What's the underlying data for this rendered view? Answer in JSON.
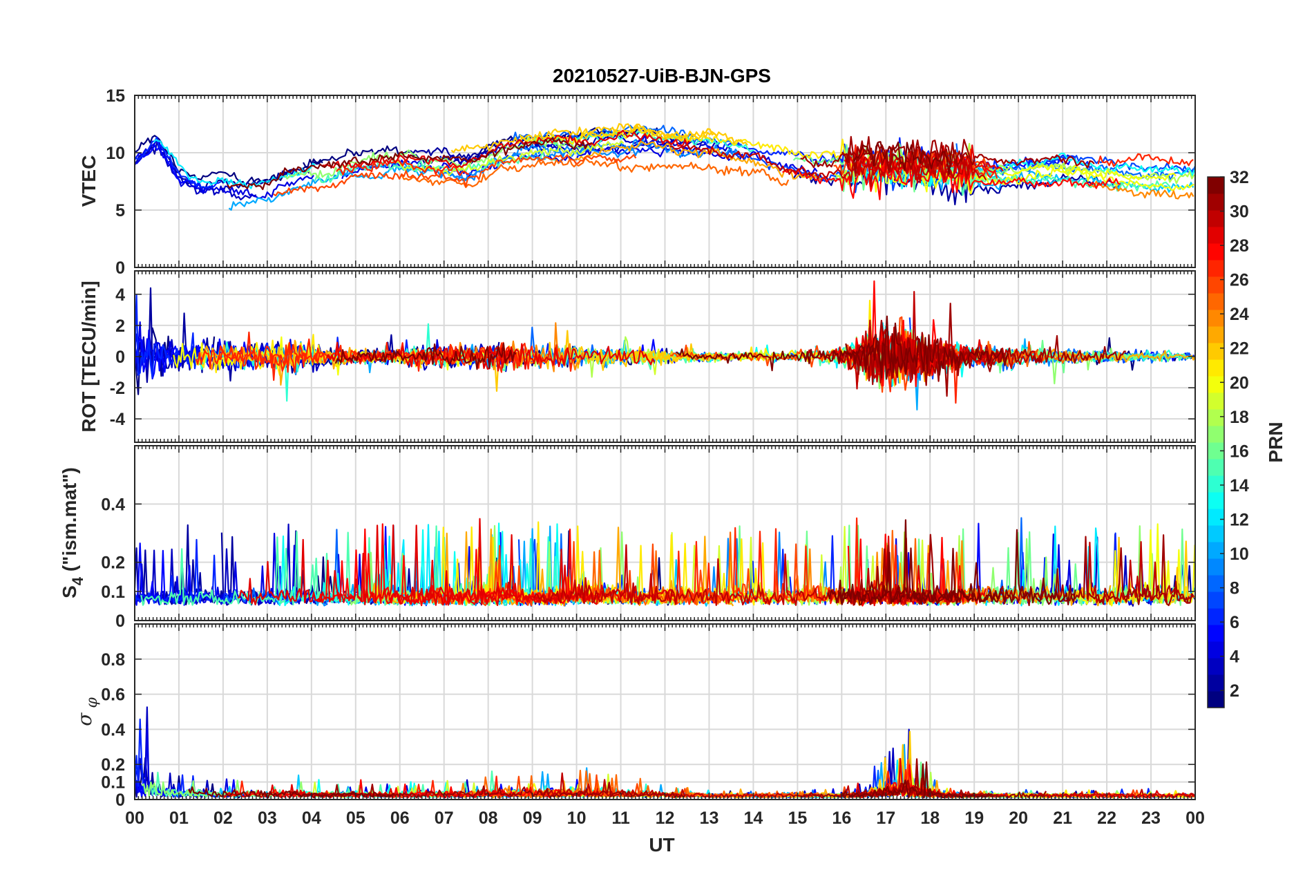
{
  "chart_data": {
    "type": "line",
    "title": "20210527-UiB-BJN-GPS",
    "xlabel": "UT",
    "x_ticks": [
      "00",
      "01",
      "02",
      "03",
      "04",
      "05",
      "06",
      "07",
      "08",
      "09",
      "10",
      "11",
      "12",
      "13",
      "14",
      "15",
      "16",
      "17",
      "18",
      "19",
      "20",
      "21",
      "22",
      "23",
      "00"
    ],
    "xlim_hours": [
      0,
      24
    ],
    "grid": true,
    "colormap": "jet",
    "colorbar": {
      "label": "PRN",
      "range": [
        1,
        32
      ],
      "ticks": [
        "2",
        "4",
        "6",
        "8",
        "10",
        "12",
        "14",
        "16",
        "18",
        "20",
        "22",
        "24",
        "26",
        "28",
        "30",
        "32"
      ]
    },
    "panels": [
      {
        "id": "vtec",
        "ylabel": "VTEC",
        "ylim": [
          0,
          15
        ],
        "y_ticks": [
          0,
          5,
          10,
          15
        ],
        "y_tick_labels": [
          "0",
          "5",
          "10",
          "15"
        ],
        "activity": [
          [
            0.0,
            9.0
          ],
          [
            0.5,
            10.5
          ],
          [
            1.0,
            7.5
          ],
          [
            1.5,
            6.5
          ],
          [
            2.0,
            6.8
          ],
          [
            2.5,
            6.5
          ],
          [
            3.0,
            6.8
          ],
          [
            3.5,
            7.8
          ],
          [
            4.0,
            8.3
          ],
          [
            4.5,
            8.6
          ],
          [
            5.0,
            9.0
          ],
          [
            5.5,
            9.2
          ],
          [
            6.0,
            9.3
          ],
          [
            6.5,
            9.1
          ],
          [
            7.0,
            9.0
          ],
          [
            7.5,
            8.6
          ],
          [
            8.0,
            9.5
          ],
          [
            8.5,
            10.2
          ],
          [
            9.0,
            10.4
          ],
          [
            9.5,
            10.5
          ],
          [
            10.0,
            10.3
          ],
          [
            10.5,
            10.6
          ],
          [
            11.0,
            10.8
          ],
          [
            11.5,
            10.9
          ],
          [
            12.0,
            10.6
          ],
          [
            12.5,
            10.4
          ],
          [
            13.0,
            10.3
          ],
          [
            13.5,
            10.1
          ],
          [
            14.0,
            9.8
          ],
          [
            14.5,
            9.2
          ],
          [
            15.0,
            8.8
          ],
          [
            15.5,
            8.5
          ],
          [
            16.0,
            8.6
          ],
          [
            16.5,
            8.8
          ],
          [
            17.0,
            8.7
          ],
          [
            17.5,
            8.8
          ],
          [
            18.0,
            8.6
          ],
          [
            18.5,
            8.4
          ],
          [
            19.0,
            8.2
          ],
          [
            19.5,
            8.0
          ],
          [
            20.0,
            8.2
          ],
          [
            20.5,
            8.4
          ],
          [
            21.0,
            8.5
          ],
          [
            21.5,
            8.3
          ],
          [
            22.0,
            8.1
          ],
          [
            22.5,
            7.8
          ],
          [
            23.0,
            7.7
          ],
          [
            23.5,
            7.6
          ],
          [
            24.0,
            7.6
          ]
        ]
      },
      {
        "id": "rot",
        "ylabel": "ROT [TECU/min]",
        "ylim": [
          -5.5,
          5.5
        ],
        "y_ticks": [
          -4,
          -2,
          0,
          2,
          4
        ],
        "y_tick_labels": [
          "-4",
          "-2",
          "0",
          "2",
          "4"
        ],
        "activity": [
          [
            0.0,
            2.6
          ],
          [
            0.5,
            1.6
          ],
          [
            1.0,
            1.0
          ],
          [
            1.5,
            0.9
          ],
          [
            2.0,
            1.1
          ],
          [
            2.5,
            0.9
          ],
          [
            3.0,
            1.1
          ],
          [
            3.5,
            1.4
          ],
          [
            4.0,
            0.9
          ],
          [
            4.5,
            0.6
          ],
          [
            5.0,
            0.6
          ],
          [
            5.5,
            0.5
          ],
          [
            6.0,
            0.6
          ],
          [
            6.5,
            0.9
          ],
          [
            7.0,
            0.8
          ],
          [
            7.5,
            0.8
          ],
          [
            8.0,
            0.9
          ],
          [
            8.5,
            1.0
          ],
          [
            9.0,
            0.9
          ],
          [
            9.5,
            1.0
          ],
          [
            10.0,
            0.9
          ],
          [
            10.5,
            0.7
          ],
          [
            11.0,
            0.7
          ],
          [
            11.5,
            0.6
          ],
          [
            12.0,
            0.5
          ],
          [
            12.5,
            0.4
          ],
          [
            13.0,
            0.35
          ],
          [
            13.5,
            0.3
          ],
          [
            14.0,
            0.3
          ],
          [
            14.5,
            0.35
          ],
          [
            15.0,
            0.4
          ],
          [
            15.5,
            0.5
          ],
          [
            16.0,
            0.8
          ],
          [
            16.5,
            1.8
          ],
          [
            17.0,
            2.4
          ],
          [
            17.5,
            2.2
          ],
          [
            18.0,
            1.6
          ],
          [
            18.5,
            1.0
          ],
          [
            19.0,
            0.8
          ],
          [
            19.5,
            0.7
          ],
          [
            20.0,
            0.7
          ],
          [
            20.5,
            0.6
          ],
          [
            21.0,
            0.6
          ],
          [
            21.5,
            0.5
          ],
          [
            22.0,
            0.5
          ],
          [
            22.5,
            0.4
          ],
          [
            23.0,
            0.4
          ],
          [
            23.5,
            0.35
          ],
          [
            24.0,
            0.3
          ]
        ]
      },
      {
        "id": "s4",
        "ylabel": "S4 (\"ism.mat\")",
        "ylim": [
          0,
          0.6
        ],
        "y_ticks": [
          0,
          0.1,
          0.2,
          0.4
        ],
        "y_tick_labels": [
          "0",
          "0.1",
          "0.2",
          "0.4"
        ],
        "activity": [
          [
            0.0,
            0.09
          ],
          [
            0.5,
            0.08
          ],
          [
            1.0,
            0.08
          ],
          [
            1.5,
            0.1
          ],
          [
            2.0,
            0.09
          ],
          [
            2.5,
            0.08
          ],
          [
            3.0,
            0.09
          ],
          [
            3.5,
            0.1
          ],
          [
            4.0,
            0.09
          ],
          [
            4.5,
            0.08
          ],
          [
            5.0,
            0.09
          ],
          [
            5.5,
            0.1
          ],
          [
            6.0,
            0.09
          ],
          [
            6.5,
            0.1
          ],
          [
            7.0,
            0.09
          ],
          [
            7.5,
            0.1
          ],
          [
            8.0,
            0.11
          ],
          [
            8.5,
            0.1
          ],
          [
            9.0,
            0.09
          ],
          [
            9.5,
            0.09
          ],
          [
            10.0,
            0.1
          ],
          [
            10.5,
            0.11
          ],
          [
            11.0,
            0.1
          ],
          [
            11.5,
            0.09
          ],
          [
            12.0,
            0.1
          ],
          [
            12.5,
            0.1
          ],
          [
            13.0,
            0.09
          ],
          [
            13.5,
            0.1
          ],
          [
            14.0,
            0.1
          ],
          [
            14.5,
            0.09
          ],
          [
            15.0,
            0.09
          ],
          [
            15.5,
            0.1
          ],
          [
            16.0,
            0.1
          ],
          [
            16.5,
            0.1
          ],
          [
            17.0,
            0.11
          ],
          [
            17.5,
            0.1
          ],
          [
            18.0,
            0.09
          ],
          [
            18.5,
            0.09
          ],
          [
            19.0,
            0.1
          ],
          [
            19.5,
            0.1
          ],
          [
            20.0,
            0.11
          ],
          [
            20.5,
            0.1
          ],
          [
            21.0,
            0.1
          ],
          [
            21.5,
            0.09
          ],
          [
            22.0,
            0.1
          ],
          [
            22.5,
            0.1
          ],
          [
            23.0,
            0.11
          ],
          [
            23.5,
            0.11
          ],
          [
            24.0,
            0.1
          ]
        ]
      },
      {
        "id": "sigphi",
        "ylabel": "σφ",
        "ylim": [
          0,
          1.0
        ],
        "y_ticks": [
          0,
          0.1,
          0.2,
          0.4,
          0.6,
          0.8
        ],
        "y_tick_labels": [
          "0",
          "0.1",
          "0.2",
          "0.4",
          "0.6",
          "0.8"
        ],
        "activity": [
          [
            0.0,
            0.3
          ],
          [
            0.5,
            0.08
          ],
          [
            1.0,
            0.05
          ],
          [
            1.5,
            0.04
          ],
          [
            2.0,
            0.03
          ],
          [
            2.5,
            0.03
          ],
          [
            3.0,
            0.03
          ],
          [
            3.5,
            0.04
          ],
          [
            4.0,
            0.03
          ],
          [
            4.5,
            0.02
          ],
          [
            5.0,
            0.03
          ],
          [
            5.5,
            0.02
          ],
          [
            6.0,
            0.02
          ],
          [
            6.5,
            0.03
          ],
          [
            7.0,
            0.03
          ],
          [
            7.5,
            0.03
          ],
          [
            8.0,
            0.04
          ],
          [
            8.5,
            0.04
          ],
          [
            9.0,
            0.05
          ],
          [
            9.5,
            0.05
          ],
          [
            10.0,
            0.05
          ],
          [
            10.5,
            0.05
          ],
          [
            11.0,
            0.04
          ],
          [
            11.5,
            0.03
          ],
          [
            12.0,
            0.02
          ],
          [
            12.5,
            0.02
          ],
          [
            13.0,
            0.01
          ],
          [
            13.5,
            0.01
          ],
          [
            14.0,
            0.01
          ],
          [
            14.5,
            0.01
          ],
          [
            15.0,
            0.01
          ],
          [
            15.5,
            0.01
          ],
          [
            16.0,
            0.01
          ],
          [
            16.5,
            0.03
          ],
          [
            17.0,
            0.08
          ],
          [
            17.5,
            0.12
          ],
          [
            18.0,
            0.05
          ],
          [
            18.5,
            0.01
          ],
          [
            19.0,
            0.01
          ],
          [
            19.5,
            0.01
          ],
          [
            20.0,
            0.01
          ],
          [
            20.5,
            0.01
          ],
          [
            21.0,
            0.01
          ],
          [
            21.5,
            0.01
          ],
          [
            22.0,
            0.01
          ],
          [
            22.5,
            0.01
          ],
          [
            23.0,
            0.01
          ],
          [
            23.5,
            0.01
          ],
          [
            24.0,
            0.01
          ]
        ]
      }
    ]
  }
}
